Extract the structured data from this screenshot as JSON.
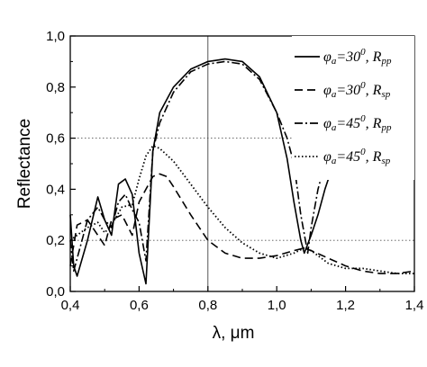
{
  "chart_data": {
    "type": "line",
    "xlabel": "λ, μm",
    "ylabel": "Reflectance",
    "xlim": [
      0.4,
      1.4
    ],
    "ylim": [
      0.0,
      1.0
    ],
    "xticks": [
      "0,4",
      "0,6",
      "0,8",
      "1,0",
      "1,2",
      "1,4"
    ],
    "yticks": [
      "0,0",
      "0,2",
      "0,4",
      "0,6",
      "0,8",
      "1,0"
    ],
    "reference_lines": {
      "horizontal": [
        0.2,
        0.6
      ],
      "vertical": [
        0.8
      ]
    },
    "legend_position": "top-right",
    "series": [
      {
        "name": "φa=30⁰, Rpp",
        "legend": {
          "phi": "φ",
          "sub_a": "a",
          "eq": "=30",
          "sup": "0",
          "comma": ", ",
          "r": "R",
          "sub_r": "pp"
        },
        "style": "solid",
        "x": [
          0.4,
          0.41,
          0.42,
          0.45,
          0.48,
          0.5,
          0.52,
          0.54,
          0.56,
          0.58,
          0.6,
          0.62,
          0.64,
          0.66,
          0.7,
          0.75,
          0.8,
          0.85,
          0.9,
          0.95,
          1.0,
          1.03,
          1.05,
          1.07,
          1.08,
          1.1,
          1.12,
          1.14,
          1.16
        ],
        "y": [
          0.3,
          0.1,
          0.06,
          0.2,
          0.37,
          0.28,
          0.22,
          0.42,
          0.44,
          0.38,
          0.15,
          0.03,
          0.55,
          0.7,
          0.8,
          0.87,
          0.9,
          0.91,
          0.9,
          0.84,
          0.7,
          0.52,
          0.35,
          0.2,
          0.15,
          0.22,
          0.3,
          0.4,
          0.48
        ]
      },
      {
        "name": "φa=30⁰, Rsp",
        "legend": {
          "phi": "φ",
          "sub_a": "a",
          "eq": "=30",
          "sup": "0",
          "comma": ", ",
          "r": "R",
          "sub_r": "sp"
        },
        "style": "dashed",
        "x": [
          0.4,
          0.42,
          0.45,
          0.48,
          0.5,
          0.52,
          0.55,
          0.58,
          0.6,
          0.62,
          0.64,
          0.66,
          0.68,
          0.7,
          0.75,
          0.8,
          0.85,
          0.9,
          0.95,
          1.0,
          1.05,
          1.08,
          1.1,
          1.15,
          1.2,
          1.25,
          1.3,
          1.35,
          1.4
        ],
        "y": [
          0.1,
          0.26,
          0.28,
          0.22,
          0.18,
          0.28,
          0.3,
          0.22,
          0.35,
          0.4,
          0.45,
          0.46,
          0.45,
          0.41,
          0.3,
          0.2,
          0.15,
          0.13,
          0.13,
          0.14,
          0.16,
          0.17,
          0.16,
          0.13,
          0.1,
          0.08,
          0.07,
          0.07,
          0.08
        ]
      },
      {
        "name": "φa=45⁰, Rpp",
        "legend": {
          "phi": "φ",
          "sub_a": "a",
          "eq": "=45",
          "sup": "0",
          "comma": ", ",
          "r": "R",
          "sub_r": "pp"
        },
        "style": "dashdot",
        "x": [
          0.4,
          0.41,
          0.43,
          0.45,
          0.48,
          0.5,
          0.52,
          0.54,
          0.56,
          0.58,
          0.6,
          0.62,
          0.64,
          0.66,
          0.7,
          0.75,
          0.8,
          0.85,
          0.9,
          0.95,
          1.0,
          1.03,
          1.05,
          1.07,
          1.09,
          1.1,
          1.12,
          1.14
        ],
        "y": [
          0.2,
          0.08,
          0.18,
          0.28,
          0.33,
          0.28,
          0.25,
          0.35,
          0.38,
          0.32,
          0.27,
          0.12,
          0.55,
          0.66,
          0.78,
          0.86,
          0.89,
          0.9,
          0.89,
          0.83,
          0.7,
          0.6,
          0.5,
          0.3,
          0.15,
          0.25,
          0.4,
          0.5
        ]
      },
      {
        "name": "φa=45⁰, Rsp",
        "legend": {
          "phi": "φ",
          "sub_a": "a",
          "eq": "=45",
          "sup": "0",
          "comma": ", ",
          "r": "R",
          "sub_r": "sp"
        },
        "style": "dotted",
        "x": [
          0.4,
          0.42,
          0.45,
          0.48,
          0.5,
          0.52,
          0.55,
          0.58,
          0.6,
          0.62,
          0.64,
          0.66,
          0.7,
          0.75,
          0.8,
          0.85,
          0.9,
          0.95,
          1.0,
          1.05,
          1.08,
          1.1,
          1.15,
          1.2,
          1.25,
          1.3,
          1.35,
          1.4
        ],
        "y": [
          0.2,
          0.22,
          0.25,
          0.27,
          0.23,
          0.26,
          0.33,
          0.34,
          0.44,
          0.53,
          0.57,
          0.56,
          0.51,
          0.42,
          0.33,
          0.25,
          0.19,
          0.15,
          0.13,
          0.15,
          0.17,
          0.16,
          0.11,
          0.09,
          0.09,
          0.08,
          0.07,
          0.07
        ]
      }
    ]
  }
}
